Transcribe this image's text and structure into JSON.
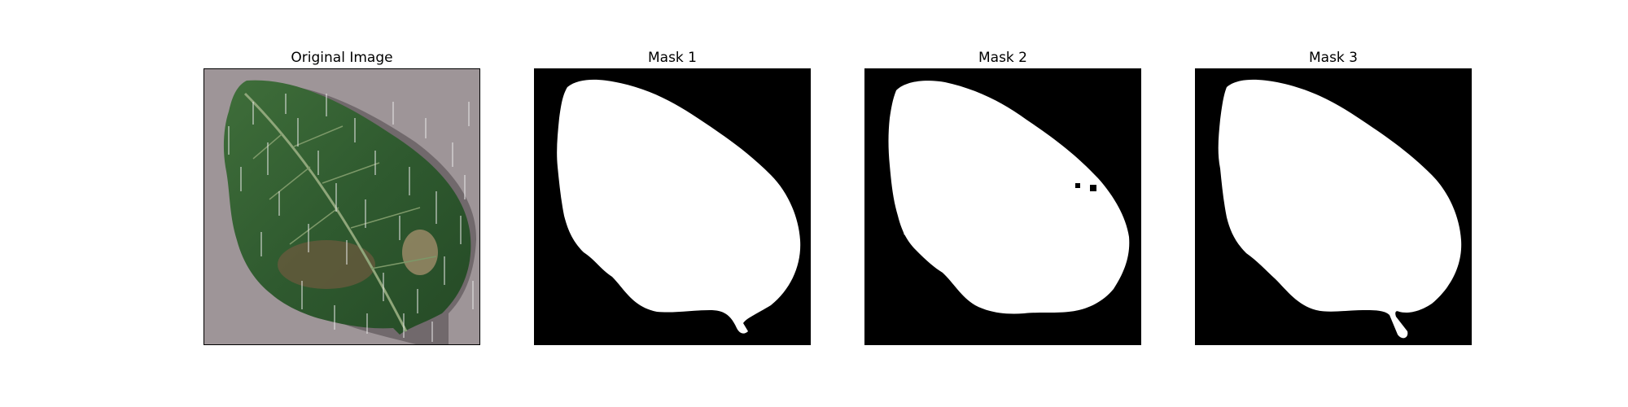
{
  "figure": {
    "panels": [
      {
        "title": "Original Image",
        "content": "leaf-photo"
      },
      {
        "title": "Mask 1",
        "content": "leaf-mask"
      },
      {
        "title": "Mask 2",
        "content": "leaf-mask"
      },
      {
        "title": "Mask 3",
        "content": "leaf-mask"
      }
    ],
    "colors": {
      "background": "#ffffff",
      "mask_background": "#000000",
      "mask_foreground": "#ffffff",
      "leaf_green": "#2f5a2f",
      "surface_gray": "#9e9598"
    }
  }
}
